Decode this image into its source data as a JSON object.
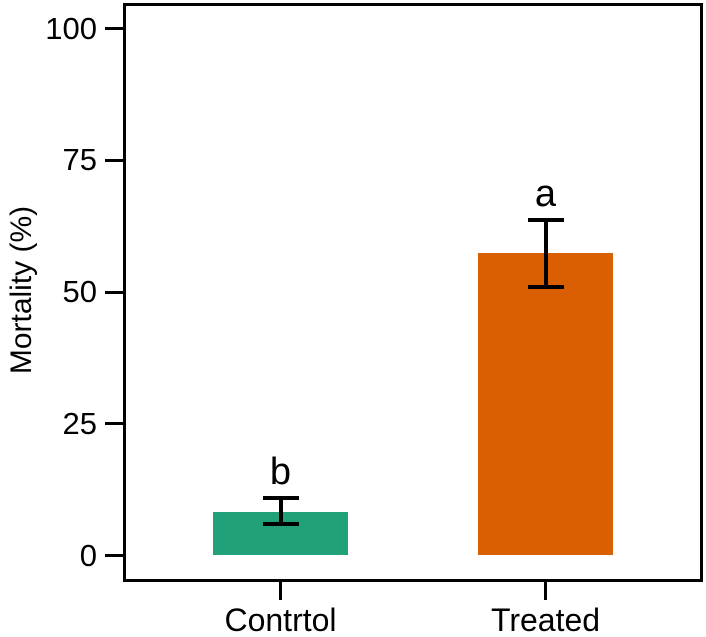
{
  "chart_data": {
    "type": "bar",
    "title": "",
    "xlabel": "",
    "ylabel": "Mortality (%)",
    "categories": [
      "Contrtol",
      "Treated"
    ],
    "values": [
      8.2,
      57.4
    ],
    "error_low": [
      6.0,
      51.0
    ],
    "error_high": [
      10.9,
      63.7
    ],
    "significance_letters": [
      "b",
      "a"
    ],
    "bar_colors": [
      "#21A179",
      "#D95F02"
    ],
    "yticks": [
      0,
      25,
      50,
      75,
      100
    ],
    "ylim": [
      -5,
      105
    ],
    "grid": false,
    "legend": "none",
    "line_color": "#000000",
    "background_color": "#ffffff"
  }
}
